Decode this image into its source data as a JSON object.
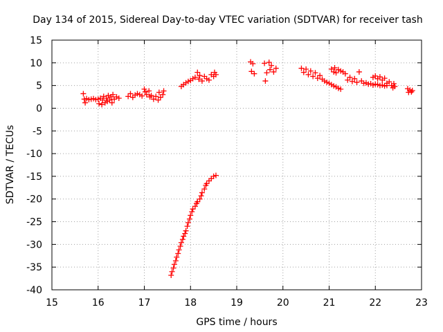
{
  "chart_data": {
    "type": "scatter",
    "title": "Day 134 of 2015, Sidereal Day-to-day VTEC variation (SDTVAR) for receiver tash",
    "xlabel": "GPS time / hours",
    "ylabel": "SDTVAR / TECUs",
    "xlim": [
      15,
      23
    ],
    "ylim": [
      -40,
      15
    ],
    "x_ticks": [
      15,
      16,
      17,
      18,
      19,
      20,
      21,
      22,
      23
    ],
    "x_tick_labels": [
      "15",
      "16",
      "17",
      "18",
      "19",
      "20",
      "21",
      "22",
      "23"
    ],
    "y_ticks": [
      15,
      10,
      5,
      0,
      -5,
      -10,
      -15,
      -20,
      -25,
      -30,
      -35,
      -40
    ],
    "y_tick_labels": [
      "15",
      "10",
      "5",
      "0",
      "-5",
      "-10",
      "-15",
      "-20",
      "-25",
      "-30",
      "-35",
      "-40"
    ],
    "grid": true,
    "marker": "plus",
    "color": "#ff0000",
    "series": [
      {
        "points": [
          [
            15.68,
            3.2
          ],
          [
            15.7,
            2.0
          ],
          [
            15.72,
            1.2
          ],
          [
            15.75,
            2.1
          ],
          [
            15.8,
            1.9
          ],
          [
            15.85,
            2.0
          ],
          [
            15.9,
            2.1
          ],
          [
            15.95,
            1.9
          ],
          [
            16.0,
            2.0
          ],
          [
            16.02,
            1.0
          ],
          [
            16.05,
            2.2
          ],
          [
            16.08,
            0.8
          ],
          [
            16.1,
            1.8
          ],
          [
            16.12,
            2.6
          ],
          [
            16.15,
            1.2
          ],
          [
            16.18,
            2.2
          ],
          [
            16.2,
            1.5
          ],
          [
            16.22,
            2.8
          ],
          [
            16.25,
            1.8
          ],
          [
            16.28,
            2.5
          ],
          [
            16.3,
            1.2
          ],
          [
            16.32,
            3.0
          ],
          [
            16.35,
            2.0
          ],
          [
            16.4,
            2.5
          ],
          [
            16.45,
            2.2
          ],
          [
            16.65,
            2.6
          ],
          [
            16.7,
            3.2
          ],
          [
            16.75,
            2.4
          ],
          [
            16.8,
            2.9
          ],
          [
            16.85,
            3.2
          ],
          [
            16.9,
            3.0
          ],
          [
            16.95,
            2.7
          ],
          [
            17.0,
            4.2
          ],
          [
            17.02,
            3.6
          ],
          [
            17.05,
            3.0
          ],
          [
            17.1,
            3.8
          ],
          [
            17.12,
            2.5
          ],
          [
            17.15,
            2.8
          ],
          [
            17.2,
            2.0
          ],
          [
            17.25,
            2.6
          ],
          [
            17.3,
            1.8
          ],
          [
            17.32,
            3.5
          ],
          [
            17.35,
            2.4
          ],
          [
            17.4,
            3.0
          ],
          [
            17.42,
            3.8
          ],
          [
            17.8,
            4.8
          ],
          [
            17.85,
            5.2
          ],
          [
            17.9,
            5.6
          ],
          [
            17.95,
            5.9
          ],
          [
            18.0,
            6.1
          ],
          [
            18.05,
            6.5
          ],
          [
            18.1,
            6.8
          ],
          [
            18.15,
            7.9
          ],
          [
            18.18,
            6.4
          ],
          [
            18.2,
            7.2
          ],
          [
            18.25,
            6.0
          ],
          [
            18.3,
            7.0
          ],
          [
            18.35,
            6.5
          ],
          [
            18.4,
            6.2
          ],
          [
            18.45,
            7.4
          ],
          [
            18.5,
            7.0
          ],
          [
            18.52,
            7.9
          ],
          [
            18.55,
            7.4
          ],
          [
            19.3,
            10.2
          ],
          [
            19.32,
            8.1
          ],
          [
            19.35,
            9.8
          ],
          [
            19.38,
            7.6
          ],
          [
            19.6,
            9.9
          ],
          [
            19.62,
            6.0
          ],
          [
            19.65,
            7.8
          ],
          [
            19.7,
            10.1
          ],
          [
            19.72,
            8.5
          ],
          [
            19.75,
            9.4
          ],
          [
            19.8,
            8.0
          ],
          [
            19.85,
            8.8
          ],
          [
            20.4,
            8.8
          ],
          [
            20.45,
            7.9
          ],
          [
            20.5,
            8.6
          ],
          [
            20.55,
            7.4
          ],
          [
            20.6,
            8.2
          ],
          [
            20.65,
            7.0
          ],
          [
            20.7,
            7.8
          ],
          [
            20.75,
            6.6
          ],
          [
            20.8,
            7.2
          ],
          [
            20.85,
            6.4
          ],
          [
            20.9,
            6.0
          ],
          [
            20.95,
            5.7
          ],
          [
            21.0,
            5.5
          ],
          [
            21.05,
            5.2
          ],
          [
            21.1,
            4.9
          ],
          [
            21.15,
            4.7
          ],
          [
            21.2,
            4.4
          ],
          [
            21.25,
            4.2
          ],
          [
            21.05,
            8.6
          ],
          [
            21.1,
            8.0
          ],
          [
            21.12,
            8.9
          ],
          [
            21.15,
            7.8
          ],
          [
            21.2,
            8.5
          ],
          [
            21.25,
            8.2
          ],
          [
            21.3,
            8.0
          ],
          [
            21.35,
            7.6
          ],
          [
            21.4,
            6.2
          ],
          [
            21.45,
            6.8
          ],
          [
            21.5,
            5.9
          ],
          [
            21.55,
            6.5
          ],
          [
            21.6,
            5.7
          ],
          [
            21.65,
            8.0
          ],
          [
            21.7,
            6.0
          ],
          [
            21.75,
            5.5
          ],
          [
            21.8,
            5.6
          ],
          [
            21.85,
            5.3
          ],
          [
            21.9,
            5.4
          ],
          [
            21.95,
            5.1
          ],
          [
            22.0,
            5.3
          ],
          [
            21.95,
            6.8
          ],
          [
            22.0,
            7.1
          ],
          [
            22.05,
            6.5
          ],
          [
            22.1,
            6.9
          ],
          [
            22.15,
            6.2
          ],
          [
            22.2,
            6.6
          ],
          [
            22.25,
            5.5
          ],
          [
            22.3,
            5.8
          ],
          [
            22.35,
            5.0
          ],
          [
            22.38,
            4.5
          ],
          [
            22.4,
            5.4
          ],
          [
            22.42,
            4.8
          ],
          [
            22.05,
            5.2
          ],
          [
            22.1,
            5.0
          ],
          [
            22.15,
            5.1
          ],
          [
            22.2,
            4.9
          ],
          [
            22.25,
            5.0
          ],
          [
            22.7,
            4.3
          ],
          [
            22.72,
            3.5
          ],
          [
            22.75,
            4.0
          ],
          [
            22.78,
            3.6
          ],
          [
            22.8,
            3.9
          ],
          [
            17.58,
            -36.8
          ],
          [
            17.6,
            -36.0
          ],
          [
            17.63,
            -35.2
          ],
          [
            17.65,
            -34.4
          ],
          [
            17.68,
            -33.6
          ],
          [
            17.7,
            -32.8
          ],
          [
            17.73,
            -32.0
          ],
          [
            17.75,
            -31.2
          ],
          [
            17.78,
            -30.4
          ],
          [
            17.8,
            -29.6
          ],
          [
            17.83,
            -28.9
          ],
          [
            17.85,
            -28.2
          ],
          [
            17.88,
            -27.6
          ],
          [
            17.9,
            -27.0
          ],
          [
            17.93,
            -26.0
          ],
          [
            17.95,
            -25.2
          ],
          [
            17.98,
            -24.4
          ],
          [
            18.0,
            -23.6
          ],
          [
            18.03,
            -22.8
          ],
          [
            18.05,
            -22.2
          ],
          [
            18.1,
            -21.6
          ],
          [
            18.13,
            -21.0
          ],
          [
            18.15,
            -20.6
          ],
          [
            18.2,
            -20.0
          ],
          [
            18.23,
            -19.3
          ],
          [
            18.25,
            -18.6
          ],
          [
            18.3,
            -17.8
          ],
          [
            18.33,
            -17.0
          ],
          [
            18.35,
            -16.6
          ],
          [
            18.4,
            -16.0
          ],
          [
            18.45,
            -15.5
          ],
          [
            18.5,
            -15.0
          ],
          [
            18.55,
            -14.8
          ]
        ]
      }
    ]
  }
}
